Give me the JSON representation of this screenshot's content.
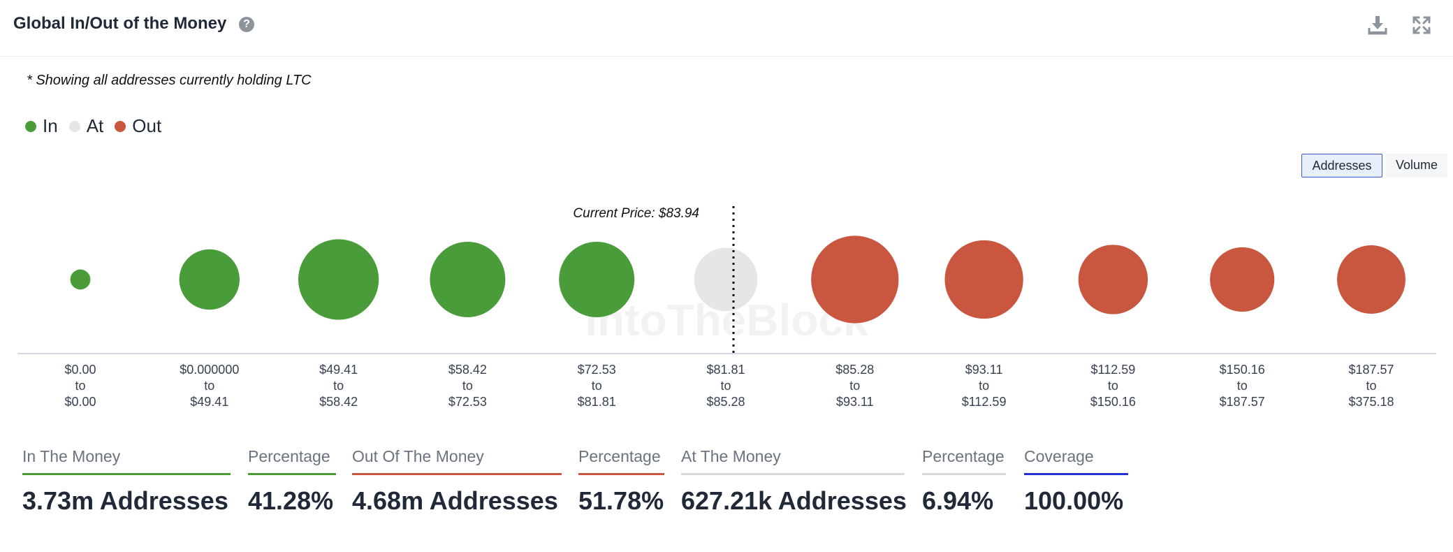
{
  "header": {
    "title": "Global In/Out of the Money",
    "help_icon": "?",
    "download_icon": "download-icon",
    "expand_icon": "expand-icon"
  },
  "subtitle": "* Showing all addresses currently holding LTC",
  "legend": [
    {
      "label": "In",
      "color": "#4a9c3a"
    },
    {
      "label": "At",
      "color": "#e6e6e6"
    },
    {
      "label": "Out",
      "color": "#c9573f"
    }
  ],
  "toggles": {
    "addresses": "Addresses",
    "volume": "Volume"
  },
  "watermark": "IntoTheBlock",
  "chart_data": {
    "type": "bubble",
    "title": "Global In/Out of the Money",
    "current_price_label": "Current Price: $83.94",
    "current_price": 83.94,
    "size_metric": "Addresses (relative bubble size)",
    "categories": [
      {
        "low": "$0.00",
        "high": "$0.00",
        "status": "In",
        "relative_size": 0.2
      },
      {
        "low": "$0.000000",
        "high": "$49.41",
        "status": "In",
        "relative_size": 0.6
      },
      {
        "low": "$49.41",
        "high": "$58.42",
        "status": "In",
        "relative_size": 0.8
      },
      {
        "low": "$58.42",
        "high": "$72.53",
        "status": "In",
        "relative_size": 0.75
      },
      {
        "low": "$72.53",
        "high": "$81.81",
        "status": "In",
        "relative_size": 0.75
      },
      {
        "low": "$81.81",
        "high": "$85.28",
        "status": "At",
        "relative_size": 0.63
      },
      {
        "low": "$85.28",
        "high": "$93.11",
        "status": "Out",
        "relative_size": 0.87
      },
      {
        "low": "$93.11",
        "high": "$112.59",
        "status": "Out",
        "relative_size": 0.78
      },
      {
        "low": "$112.59",
        "high": "$150.16",
        "status": "Out",
        "relative_size": 0.69
      },
      {
        "low": "$150.16",
        "high": "$187.57",
        "status": "Out",
        "relative_size": 0.64
      },
      {
        "low": "$187.57",
        "high": "$375.18",
        "status": "Out",
        "relative_size": 0.68
      }
    ],
    "range_connector": "to"
  },
  "stats": {
    "in_money": {
      "label": "In The Money",
      "value": "3.73m Addresses",
      "color": "#4a9c3a"
    },
    "in_pct": {
      "label": "Percentage",
      "value": "41.28%",
      "color": "#4a9c3a"
    },
    "out_money": {
      "label": "Out Of The Money",
      "value": "4.68m Addresses",
      "color": "#c9573f"
    },
    "out_pct": {
      "label": "Percentage",
      "value": "51.78%",
      "color": "#c9573f"
    },
    "at_money": {
      "label": "At The Money",
      "value": "627.21k Addresses",
      "color": "#d9d9d9"
    },
    "at_pct": {
      "label": "Percentage",
      "value": "6.94%",
      "color": "#d9d9d9"
    },
    "coverage": {
      "label": "Coverage",
      "value": "100.00%",
      "color": "#2430d6"
    }
  }
}
